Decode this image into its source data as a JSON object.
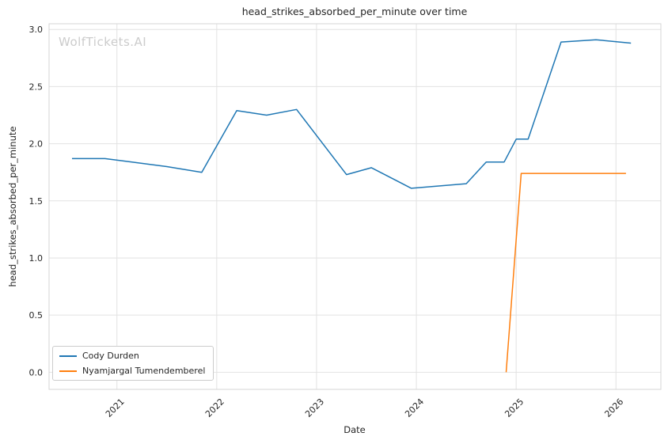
{
  "watermark": "WolfTickets.AI",
  "chart_data": {
    "type": "line",
    "title": "head_strikes_absorbed_per_minute over time",
    "xlabel": "Date",
    "ylabel": "head_strikes_absorbed_per_minute",
    "grid": true,
    "legend_position": "lower-left",
    "xlim": [
      2020.32,
      2026.45
    ],
    "ylim": [
      -0.15,
      3.05
    ],
    "x_ticks": [
      2021,
      2022,
      2023,
      2024,
      2025,
      2026
    ],
    "y_ticks": [
      0.0,
      0.5,
      1.0,
      1.5,
      2.0,
      2.5,
      3.0
    ],
    "series": [
      {
        "name": "Cody Durden",
        "color": "#1f77b4",
        "x": [
          2020.55,
          2020.88,
          2021.15,
          2021.5,
          2021.85,
          2022.2,
          2022.5,
          2022.8,
          2023.3,
          2023.55,
          2023.95,
          2024.5,
          2024.7,
          2024.88,
          2025.0,
          2025.12,
          2025.45,
          2025.8,
          2026.15
        ],
        "y": [
          1.87,
          1.87,
          1.84,
          1.8,
          1.75,
          2.29,
          2.25,
          2.3,
          1.73,
          1.79,
          1.61,
          1.65,
          1.84,
          1.84,
          2.04,
          2.04,
          2.89,
          2.91,
          2.88
        ]
      },
      {
        "name": "Nyamjargal Tumendemberel",
        "color": "#ff7f0e",
        "x": [
          2024.9,
          2025.05,
          2025.6,
          2026.1
        ],
        "y": [
          0.0,
          1.74,
          1.74,
          1.74
        ]
      }
    ]
  }
}
